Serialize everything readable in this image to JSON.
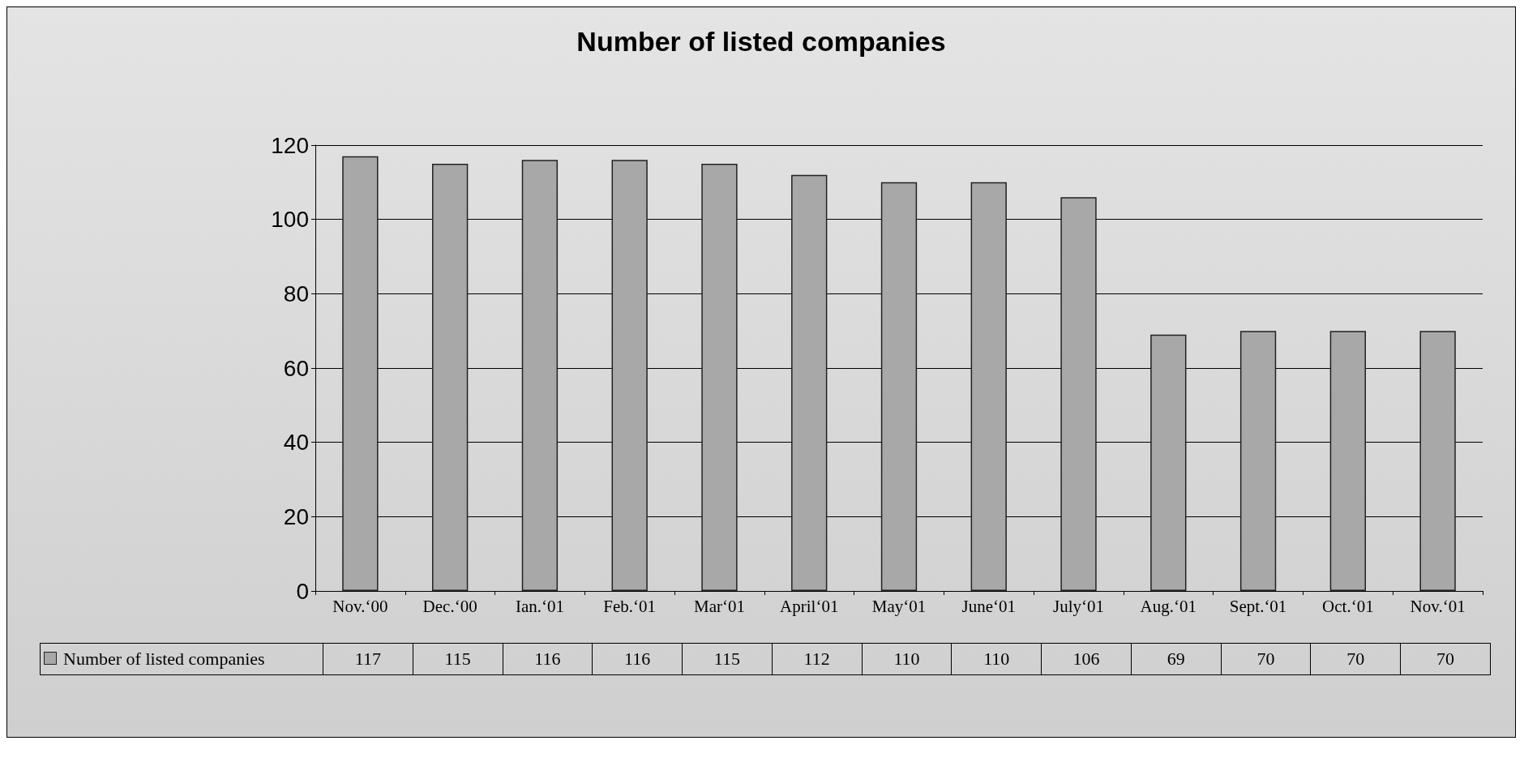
{
  "chart_data": {
    "type": "bar",
    "title": "Number of listed companies",
    "categories": [
      "Nov.‘00",
      "Dec.‘00",
      "Ian.‘01",
      "Feb.‘01",
      "Mar‘01",
      "April‘01",
      "May‘01",
      "June‘01",
      "July‘01",
      "Aug.‘01",
      "Sept.‘01",
      "Oct.‘01",
      "Nov.‘01"
    ],
    "series": [
      {
        "name": "Number of listed companies",
        "color": "#a8a8a8",
        "values": [
          117,
          115,
          116,
          116,
          115,
          112,
          110,
          110,
          106,
          69,
          70,
          70,
          70
        ]
      }
    ],
    "ylim": [
      0,
      120
    ],
    "yticks": [
      0,
      20,
      40,
      60,
      80,
      100,
      120
    ],
    "grid": "y",
    "legend": "bottom left",
    "data_labels": true
  }
}
